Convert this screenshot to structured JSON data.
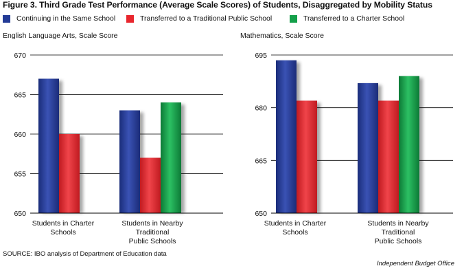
{
  "figure_title": "Figure 3. Third Grade Test Performance (Average Scale Scores) of Students, Disaggregated by Mobility Status",
  "legend": [
    {
      "label": "Continuing in the Same School",
      "color": "#233b96"
    },
    {
      "label": "Transferred to a Traditional Public School",
      "color": "#e8262d"
    },
    {
      "label": "Transferred to a Charter School",
      "color": "#14a04a"
    }
  ],
  "source": "SOURCE: IBO analysis of Department of Education data",
  "credit": "Independent Budget Office",
  "chart_data": [
    {
      "type": "bar",
      "title": "English Language Arts, Scale Score",
      "categories": [
        [
          "Students in Charter",
          "Schools"
        ],
        [
          "Students in Nearby",
          "Traditional",
          "Public Schools"
        ]
      ],
      "ylim": [
        650,
        670
      ],
      "yticks": [
        650,
        655,
        660,
        665,
        670
      ],
      "grid": true,
      "legend_position": "top",
      "series": [
        {
          "name": "Continuing in the Same School",
          "color": "#233b96",
          "values": [
            667,
            663
          ]
        },
        {
          "name": "Transferred to a Traditional Public School",
          "color": "#e8262d",
          "values": [
            660,
            657
          ]
        },
        {
          "name": "Transferred to a Charter School",
          "color": "#14a04a",
          "values": [
            null,
            664
          ]
        }
      ]
    },
    {
      "type": "bar",
      "title": "Mathematics, Scale Score",
      "categories": [
        [
          "Students in Charter",
          "Schools"
        ],
        [
          "Students in Nearby",
          "Traditional",
          "Public Schools"
        ]
      ],
      "ylim": [
        650,
        695
      ],
      "yticks": [
        650,
        665,
        680,
        695
      ],
      "grid": true,
      "legend_position": "top",
      "series": [
        {
          "name": "Continuing in the Same School",
          "color": "#233b96",
          "values": [
            693.5,
            687
          ]
        },
        {
          "name": "Transferred to a Traditional Public School",
          "color": "#e8262d",
          "values": [
            682,
            682
          ]
        },
        {
          "name": "Transferred to a Charter School",
          "color": "#14a04a",
          "values": [
            null,
            689
          ]
        }
      ]
    }
  ]
}
